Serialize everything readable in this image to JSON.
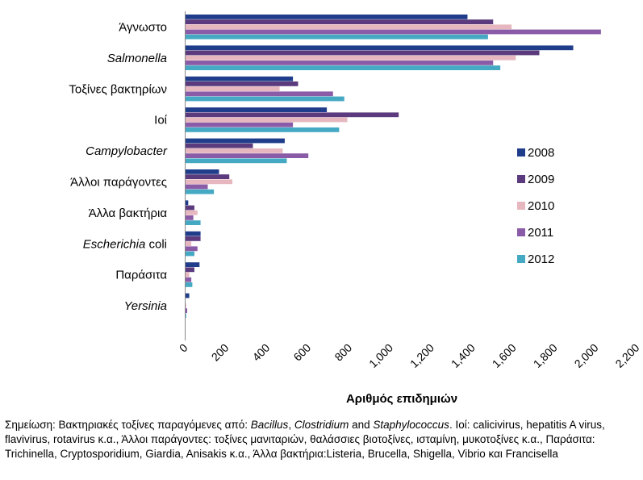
{
  "chart_data": {
    "type": "bar",
    "orientation": "horizontal",
    "xlabel": "Αριθμός επιδημιών",
    "ylabel": "",
    "xlim": [
      0,
      2200
    ],
    "x_ticks": [
      "0",
      "200",
      "400",
      "600",
      "800",
      "1,000",
      "1,200",
      "1,400",
      "1,600",
      "1,800",
      "2,000",
      "2,200"
    ],
    "grid": false,
    "legend_position": "right",
    "categories": [
      "Άγνωστο",
      "Salmonella",
      "Τοξίνες βακτηρίων",
      "Ιοί",
      "Campylobacter",
      "Άλλοι παράγοντες",
      "Άλλα βακτήρια",
      "Escherichia coli",
      "Παράσιτα",
      "Yersinia"
    ],
    "category_italic": [
      false,
      true,
      false,
      false,
      true,
      false,
      false,
      "partial",
      false,
      true
    ],
    "category_label_parts": [
      [
        {
          "t": "Άγνωστο",
          "i": false
        }
      ],
      [
        {
          "t": "Salmonella",
          "i": true
        }
      ],
      [
        {
          "t": "Τοξίνες βακτηρίων",
          "i": false
        }
      ],
      [
        {
          "t": "Ιοί",
          "i": false
        }
      ],
      [
        {
          "t": "Campylobacter",
          "i": true
        }
      ],
      [
        {
          "t": "Άλλοι παράγοντες",
          "i": false
        }
      ],
      [
        {
          "t": "Άλλα βακτήρια",
          "i": false
        }
      ],
      [
        {
          "t": "Escherichia",
          "i": true
        },
        {
          "t": " coli",
          "i": false
        }
      ],
      [
        {
          "t": "Παράσιτα",
          "i": false
        }
      ],
      [
        {
          "t": "Yersinia",
          "i": true
        }
      ]
    ],
    "series": [
      {
        "name": "2008",
        "color": "#1f3d8a",
        "values": [
          1375,
          1890,
          525,
          690,
          485,
          165,
          15,
          75,
          70,
          20
        ]
      },
      {
        "name": "2009",
        "color": "#5b3b7d",
        "values": [
          1500,
          1725,
          550,
          1040,
          330,
          215,
          45,
          75,
          45,
          0
        ]
      },
      {
        "name": "2010",
        "color": "#e6b7bf",
        "values": [
          1590,
          1610,
          460,
          790,
          475,
          230,
          60,
          30,
          20,
          5
        ]
      },
      {
        "name": "2011",
        "color": "#8a5ba6",
        "values": [
          2025,
          1500,
          720,
          525,
          600,
          110,
          40,
          60,
          30,
          10
        ]
      },
      {
        "name": "2012",
        "color": "#45a9c4",
        "values": [
          1475,
          1535,
          775,
          750,
          495,
          140,
          75,
          45,
          35,
          5
        ]
      }
    ]
  },
  "note": {
    "parts": [
      {
        "t": "Σημείωση:  Βακτηριακές τοξίνες παραγόμενες από:  ",
        "i": false
      },
      {
        "t": "Bacillus",
        "i": true
      },
      {
        "t": ", ",
        "i": false
      },
      {
        "t": "Clostridium",
        "i": true
      },
      {
        "t": "  and ",
        "i": false
      },
      {
        "t": "Staphylococcus",
        "i": true
      },
      {
        "t": ". Ιοί:  calicivirus, hepatitis A virus, flavivirus, rotavirus κ.α., Άλλοι παράγοντες: τοξίνες μανιταριών, θαλάσσιες βιοτοξίνες, ισταμίνη, μυκοτοξίνες κ.α., Παράσιτα: Trichinella, Cryptosporidium, Giardia, Anisakis κ.α., Άλλα βακτήρια:Listeria, Brucella, Shigella, Vibrio και Francisella",
        "i": false
      }
    ]
  }
}
